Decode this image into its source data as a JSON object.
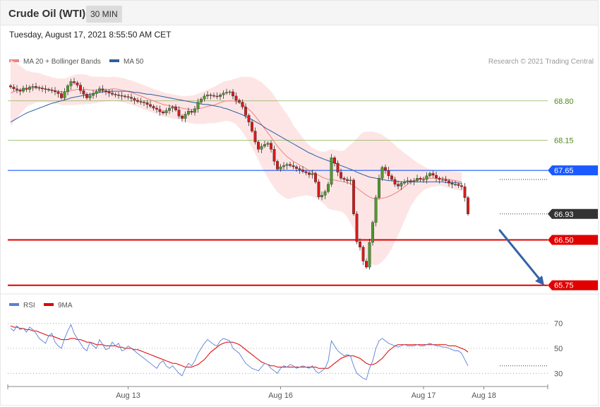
{
  "header": {
    "title": "Crude Oil (WTI)",
    "timeframe": "30 MIN"
  },
  "datetime": "Tuesday, August 17, 2021 8:55:50 AM CET",
  "colors": {
    "up": "#4e9a2c",
    "down": "#d61a1a",
    "ma20": "#f08080",
    "ma50": "#2e5e9e",
    "band": "#fde0e0",
    "support": "#e00000",
    "pivot": "#1a5aff",
    "resistance": "#8ab35a",
    "rsi": "#5a7fd6",
    "rsi_ma": "#e00000"
  },
  "legend": {
    "ma20": "MA 20 + Bollinger Bands",
    "ma50": "MA 50",
    "rsi": "RSI",
    "rsi_ma": "9MA"
  },
  "copyright": "Research © 2021 Trading Central",
  "chart_data": {
    "type": "candlestick",
    "price_range": [
      65.7,
      69.3
    ],
    "levels": [
      {
        "value": 68.8,
        "label": "68.80",
        "kind": "resistance"
      },
      {
        "value": 68.15,
        "label": "68.15",
        "kind": "resistance"
      },
      {
        "value": 67.65,
        "label": "67.65",
        "kind": "pivot"
      },
      {
        "value": 66.5,
        "label": "66.50",
        "kind": "support"
      },
      {
        "value": 65.75,
        "label": "65.75",
        "kind": "support"
      }
    ],
    "last_price": {
      "value": 66.93,
      "label": "66.93"
    },
    "x_ticks": [
      {
        "index": 37,
        "label": "Aug 13"
      },
      {
        "index": 85,
        "label": "Aug 16"
      },
      {
        "index": 130,
        "label": "Aug 17"
      },
      {
        "index": 149,
        "label": "Aug 18"
      }
    ],
    "closes": [
      69.03,
      69.0,
      68.98,
      68.96,
      69.01,
      68.99,
      69.03,
      69.04,
      69.02,
      69.01,
      69.0,
      68.99,
      68.98,
      68.97,
      68.95,
      68.92,
      68.85,
      68.95,
      69.05,
      69.12,
      69.1,
      69.06,
      68.97,
      68.91,
      68.85,
      68.89,
      68.92,
      68.96,
      69.0,
      68.97,
      68.95,
      68.93,
      68.91,
      68.9,
      68.89,
      68.88,
      68.87,
      68.86,
      68.84,
      68.81,
      68.79,
      68.78,
      68.77,
      68.74,
      68.71,
      68.68,
      68.66,
      68.62,
      68.6,
      68.64,
      68.68,
      68.7,
      68.65,
      68.55,
      68.51,
      68.58,
      68.63,
      68.61,
      68.67,
      68.78,
      68.83,
      68.88,
      68.9,
      68.89,
      68.88,
      68.87,
      68.9,
      68.93,
      68.94,
      68.95,
      68.88,
      68.81,
      68.78,
      68.7,
      68.56,
      68.45,
      68.3,
      68.12,
      68.0,
      68.05,
      68.08,
      68.1,
      68.0,
      67.8,
      67.67,
      67.71,
      67.73,
      67.75,
      67.73,
      67.71,
      67.68,
      67.66,
      67.63,
      67.61,
      67.58,
      67.6,
      67.46,
      67.21,
      67.24,
      67.3,
      67.42,
      67.86,
      67.77,
      67.62,
      67.52,
      67.5,
      67.48,
      67.49,
      66.93,
      66.47,
      66.38,
      66.15,
      66.05,
      66.46,
      66.79,
      67.2,
      67.52,
      67.7,
      67.65,
      67.56,
      67.5,
      67.42,
      67.39,
      67.44,
      67.46,
      67.48,
      67.47,
      67.48,
      67.52,
      67.5,
      67.5,
      67.56,
      67.6,
      67.57,
      67.52,
      67.5,
      67.5,
      67.48,
      67.44,
      67.42,
      67.42,
      67.4,
      67.38,
      67.2,
      66.93
    ],
    "ma20": [
      68.93,
      68.95,
      68.97,
      68.98,
      68.99,
      69.0,
      69.01,
      69.01,
      69.02,
      69.02,
      69.01,
      69.0,
      68.99,
      68.98,
      68.97,
      68.96,
      68.95,
      68.95,
      68.96,
      68.97,
      68.98,
      68.99,
      68.99,
      68.99,
      68.99,
      68.98,
      68.98,
      68.98,
      68.99,
      68.99,
      68.99,
      68.99,
      69.0,
      69.0,
      68.99,
      68.98,
      68.97,
      68.95,
      68.94,
      68.92,
      68.9,
      68.88,
      68.86,
      68.84,
      68.82,
      68.8,
      68.78,
      68.76,
      68.74,
      68.73,
      68.72,
      68.71,
      68.7,
      68.69,
      68.68,
      68.67,
      68.66,
      68.66,
      68.66,
      68.67,
      68.68,
      68.69,
      68.71,
      68.72,
      68.73,
      68.75,
      68.77,
      68.79,
      68.8,
      68.8,
      68.8,
      68.79,
      68.77,
      68.74,
      68.7,
      68.66,
      68.61,
      68.55,
      68.48,
      68.41,
      68.34,
      68.27,
      68.2,
      68.12,
      68.05,
      67.99,
      67.93,
      67.88,
      67.84,
      67.8,
      67.77,
      67.74,
      67.71,
      67.68,
      67.65,
      67.62,
      67.6,
      67.57,
      67.54,
      67.52,
      67.5,
      67.5,
      67.49,
      67.48,
      67.47,
      67.46,
      67.45,
      67.43,
      67.4,
      67.36,
      67.32,
      67.28,
      67.24,
      67.21,
      67.19,
      67.18,
      67.18,
      67.19,
      67.2,
      67.22,
      67.24,
      67.27,
      67.3,
      67.34,
      67.38,
      67.42,
      67.46,
      67.48,
      67.5,
      67.51,
      67.52,
      67.52,
      67.52,
      67.52,
      67.52,
      67.52,
      67.52,
      67.51,
      67.5,
      67.49,
      67.48,
      67.47,
      67.46
    ],
    "ma50": [
      68.45,
      68.48,
      68.51,
      68.54,
      68.57,
      68.6,
      68.62,
      68.64,
      68.66,
      68.68,
      68.7,
      68.72,
      68.74,
      68.76,
      68.77,
      68.79,
      68.8,
      68.82,
      68.83,
      68.85,
      68.86,
      68.87,
      68.88,
      68.89,
      68.9,
      68.91,
      68.92,
      68.93,
      68.94,
      68.95,
      68.95,
      68.96,
      68.96,
      68.96,
      68.96,
      68.96,
      68.96,
      68.96,
      68.95,
      68.94,
      68.94,
      68.93,
      68.92,
      68.91,
      68.91,
      68.9,
      68.89,
      68.88,
      68.87,
      68.86,
      68.85,
      68.84,
      68.83,
      68.82,
      68.81,
      68.8,
      68.79,
      68.78,
      68.77,
      68.76,
      68.75,
      68.74,
      68.74,
      68.73,
      68.72,
      68.71,
      68.7,
      68.68,
      68.67,
      68.65,
      68.63,
      68.61,
      68.59,
      68.57,
      68.54,
      68.52,
      68.49,
      68.46,
      68.43,
      68.4,
      68.36,
      68.33,
      68.3,
      68.27,
      68.24,
      68.21,
      68.18,
      68.15,
      68.12,
      68.09,
      68.06,
      68.03,
      68.0,
      67.97,
      67.94,
      67.92,
      67.89,
      67.87,
      67.85,
      67.83,
      67.81,
      67.79,
      67.77,
      67.75,
      67.73,
      67.71,
      67.69,
      67.67,
      67.65,
      67.62,
      67.6,
      67.58,
      67.56,
      67.54,
      67.53,
      67.52,
      67.51,
      67.5,
      67.49,
      67.48,
      67.48,
      67.47,
      67.47,
      67.46,
      67.46,
      67.46,
      67.46,
      67.46,
      67.46,
      67.46,
      67.46,
      67.46,
      67.46,
      67.46,
      67.46,
      67.46,
      67.46,
      67.45,
      67.45,
      67.45,
      67.45,
      67.44,
      67.44
    ],
    "band_width": [
      0.55,
      0.5,
      0.45,
      0.4,
      0.35,
      0.3,
      0.28,
      0.26,
      0.25,
      0.24,
      0.23,
      0.22,
      0.22,
      0.21,
      0.21,
      0.21,
      0.22,
      0.22,
      0.23,
      0.24,
      0.25,
      0.25,
      0.25,
      0.25,
      0.24,
      0.23,
      0.22,
      0.22,
      0.21,
      0.21,
      0.2,
      0.2,
      0.2,
      0.2,
      0.2,
      0.2,
      0.2,
      0.2,
      0.2,
      0.2,
      0.2,
      0.2,
      0.2,
      0.2,
      0.2,
      0.2,
      0.2,
      0.2,
      0.2,
      0.2,
      0.2,
      0.2,
      0.2,
      0.2,
      0.2,
      0.21,
      0.22,
      0.23,
      0.24,
      0.25,
      0.26,
      0.27,
      0.28,
      0.29,
      0.3,
      0.31,
      0.32,
      0.33,
      0.33,
      0.34,
      0.36,
      0.38,
      0.42,
      0.46,
      0.5,
      0.54,
      0.58,
      0.62,
      0.66,
      0.7,
      0.72,
      0.74,
      0.76,
      0.76,
      0.76,
      0.74,
      0.72,
      0.7,
      0.66,
      0.6,
      0.56,
      0.52,
      0.48,
      0.44,
      0.42,
      0.4,
      0.4,
      0.4,
      0.42,
      0.44,
      0.48,
      0.5,
      0.5,
      0.5,
      0.5,
      0.52,
      0.58,
      0.65,
      0.72,
      0.82,
      0.92,
      1.0,
      1.05,
      1.08,
      1.1,
      1.1,
      1.08,
      1.05,
      1.0,
      0.95,
      0.88,
      0.8,
      0.72,
      0.64,
      0.56,
      0.48,
      0.4,
      0.34,
      0.28,
      0.24,
      0.2,
      0.17,
      0.15,
      0.14,
      0.13,
      0.13,
      0.13,
      0.13,
      0.14,
      0.14,
      0.15,
      0.15,
      0.16,
      0.17,
      0.18
    ],
    "rsi_range": [
      20,
      80
    ],
    "rsi_levels": [
      {
        "value": 70,
        "label": "70"
      },
      {
        "value": 50,
        "label": "50"
      },
      {
        "value": 30,
        "label": "30"
      }
    ],
    "rsi": [
      66,
      64,
      68,
      65,
      66,
      63,
      67,
      65,
      62,
      58,
      56,
      54,
      60,
      62,
      55,
      52,
      50,
      58,
      64,
      69,
      62,
      58,
      54,
      50,
      48,
      55,
      52,
      50,
      57,
      53,
      49,
      50,
      55,
      52,
      54,
      48,
      49,
      52,
      50,
      48,
      46,
      44,
      42,
      40,
      38,
      36,
      34,
      38,
      40,
      36,
      34,
      36,
      33,
      30,
      28,
      34,
      38,
      36,
      40,
      46,
      50,
      54,
      57,
      55,
      53,
      52,
      56,
      58,
      57,
      56,
      50,
      48,
      46,
      42,
      38,
      36,
      34,
      33,
      32,
      35,
      38,
      37,
      34,
      32,
      30,
      34,
      36,
      35,
      37,
      36,
      34,
      35,
      36,
      35,
      34,
      36,
      32,
      30,
      32,
      34,
      40,
      56,
      52,
      48,
      46,
      44,
      45,
      44,
      36,
      30,
      28,
      26,
      25,
      34,
      40,
      50,
      56,
      58,
      56,
      54,
      53,
      52,
      51,
      52,
      53,
      52,
      52,
      52,
      53,
      52,
      52,
      53,
      54,
      53,
      52,
      52,
      51,
      51,
      50,
      49,
      48,
      48,
      46,
      41,
      36
    ],
    "rsi_ma": [
      68,
      67,
      67,
      66,
      66,
      65,
      65,
      64,
      64,
      63,
      62,
      61,
      60,
      60,
      59,
      58,
      57,
      57,
      57,
      58,
      58,
      57,
      57,
      56,
      55,
      55,
      54,
      53,
      53,
      53,
      52,
      52,
      52,
      52,
      51,
      51,
      50,
      50,
      50,
      49,
      49,
      48,
      47,
      46,
      45,
      44,
      43,
      42,
      41,
      40,
      39,
      38,
      38,
      37,
      36,
      35,
      35,
      35,
      36,
      37,
      39,
      41,
      44,
      47,
      49,
      51,
      53,
      54,
      55,
      55,
      55,
      54,
      53,
      51,
      49,
      47,
      45,
      43,
      41,
      39,
      38,
      37,
      36,
      36,
      35,
      35,
      35,
      35,
      35,
      35,
      35,
      35,
      35,
      35,
      35,
      35,
      35,
      34,
      34,
      34,
      34,
      36,
      38,
      40,
      42,
      43,
      44,
      44,
      44,
      43,
      42,
      40,
      38,
      37,
      37,
      38,
      40,
      42,
      45,
      48,
      50,
      52,
      53,
      53,
      53,
      53,
      53,
      53,
      53,
      53,
      53,
      53,
      53,
      53,
      53,
      53,
      53,
      53,
      52,
      52,
      52,
      51,
      50,
      49,
      47
    ]
  }
}
